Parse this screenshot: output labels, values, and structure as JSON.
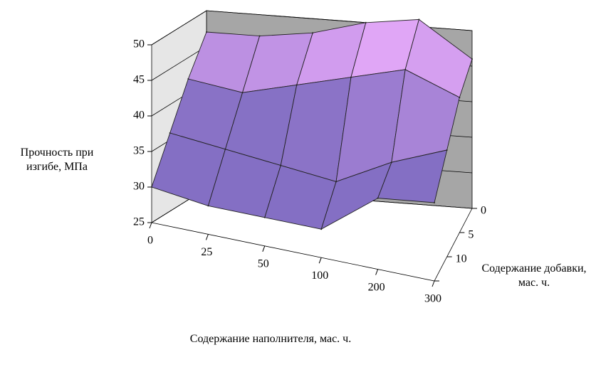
{
  "chart_data": {
    "type": "surface",
    "x_label": "Содержание наполнителя, мас. ч.",
    "depth_label": "Содержание добавки, мас. ч.",
    "z_label": "Прочность при изгибе, МПа",
    "categories": [
      0,
      25,
      50,
      100,
      200,
      300
    ],
    "depth_categories": [
      0,
      5,
      10,
      null
    ],
    "z": [
      [
        47,
        47,
        48,
        50,
        51,
        46
      ],
      [
        42,
        41,
        43,
        45,
        47,
        44
      ],
      [
        36,
        35,
        34,
        33,
        37,
        40
      ],
      [
        30,
        29,
        29,
        29,
        35,
        36
      ]
    ],
    "zlim": [
      25,
      50
    ],
    "zticks": [
      25,
      30,
      35,
      40,
      45,
      50
    ],
    "color": "#a58be6",
    "grid": true
  }
}
